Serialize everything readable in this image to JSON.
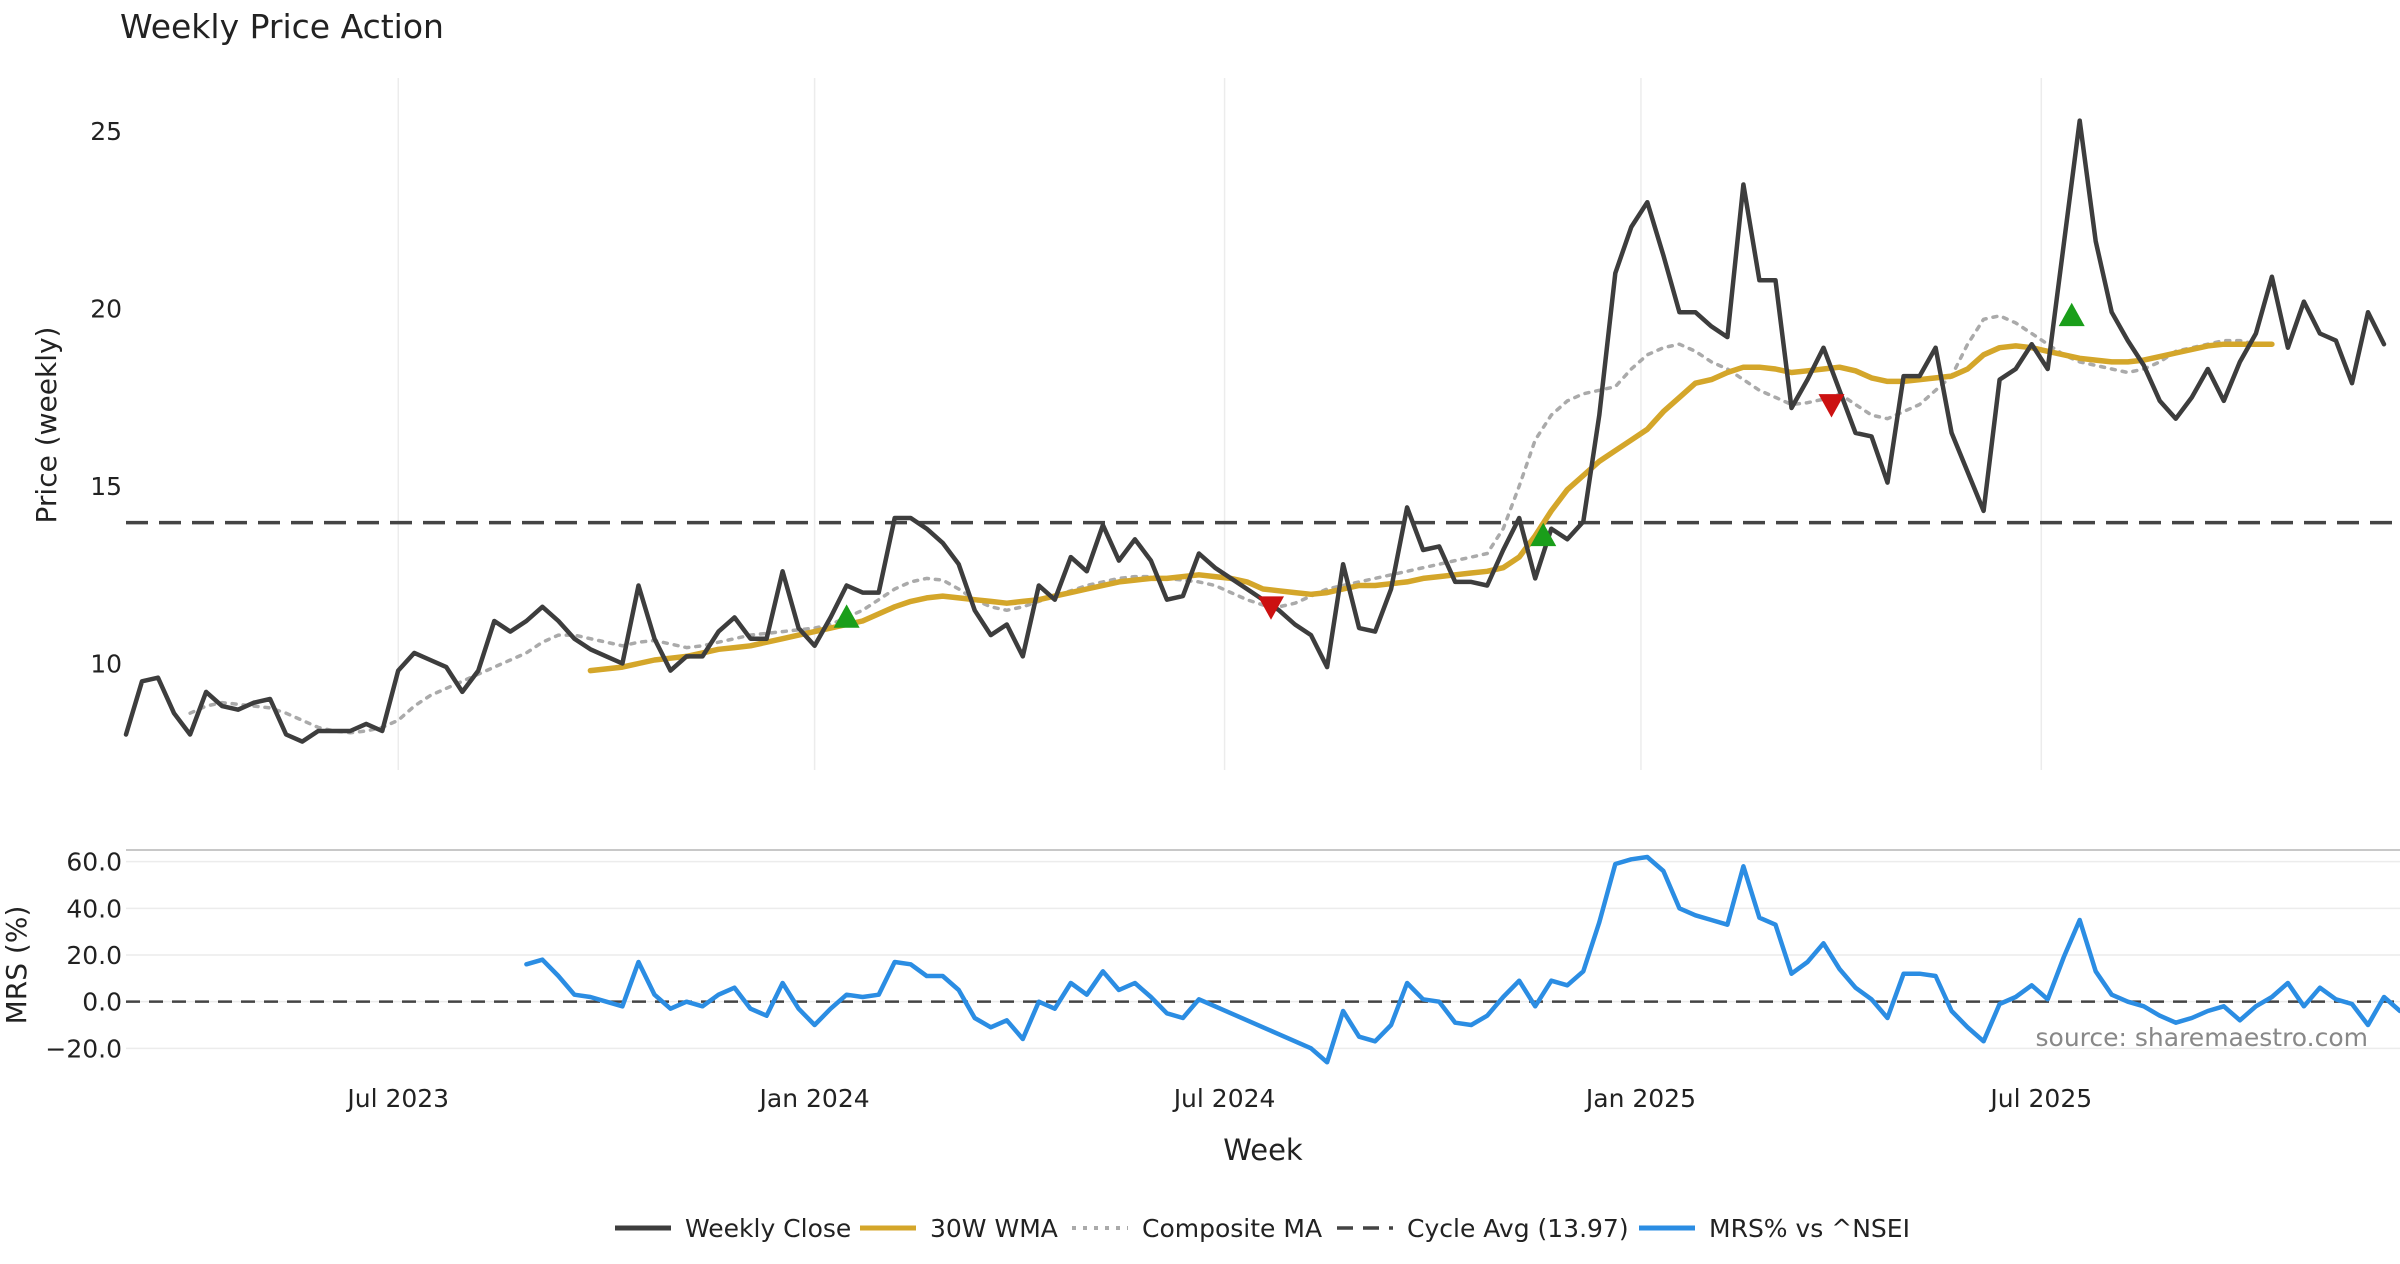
{
  "title": "Weekly Price Action",
  "source_label": "source: sharemaestro.com",
  "colors": {
    "close": "#3d3d3d",
    "wma": "#d4a62a",
    "composite": "#aaaaaa",
    "cycle": "#444444",
    "mrs": "#2b8de3",
    "buy": "#1a9e1a",
    "sell": "#cc1111",
    "grid": "#ececec",
    "text": "#222222",
    "source": "#888888"
  },
  "chart_data": [
    {
      "type": "line",
      "panel": "price",
      "ylabel": "Price (weekly)",
      "xlabel": "Week",
      "x_unit": "weeks since Mar 6 2023",
      "xlim": [
        0,
        142
      ],
      "ylim": [
        7.0,
        26.5
      ],
      "yticks": [
        10,
        15,
        20,
        25
      ],
      "xticks": [
        {
          "label": "Jul 2023",
          "week": 17
        },
        {
          "label": "Jan 2024",
          "week": 43
        },
        {
          "label": "Jul 2024",
          "week": 68.6
        },
        {
          "label": "Jan 2025",
          "week": 94.6
        },
        {
          "label": "Jul 2025",
          "week": 119.6
        }
      ],
      "cycle_average": 13.97,
      "series": [
        {
          "name": "Weekly Close",
          "start_week": 0,
          "values": [
            8.0,
            9.5,
            9.6,
            8.6,
            8.0,
            9.2,
            8.8,
            8.7,
            8.9,
            9.0,
            8.0,
            7.8,
            8.1,
            8.1,
            8.1,
            8.3,
            8.1,
            9.8,
            10.3,
            10.1,
            9.9,
            9.2,
            9.8,
            11.2,
            10.9,
            11.2,
            11.6,
            11.2,
            10.7,
            10.4,
            10.2,
            10.0,
            12.2,
            10.7,
            9.8,
            10.2,
            10.2,
            10.9,
            11.3,
            10.7,
            10.7,
            12.6,
            11.0,
            10.5,
            11.3,
            12.2,
            12.0,
            12.0,
            14.1,
            14.1,
            13.8,
            13.4,
            12.8,
            11.5,
            10.8,
            11.1,
            10.2,
            12.2,
            11.8,
            13.0,
            12.6,
            13.9,
            12.9,
            13.5,
            12.9,
            11.8,
            11.9,
            13.1,
            12.7,
            12.4,
            12.1,
            11.8,
            11.5,
            11.1,
            10.8,
            9.9,
            12.8,
            11.0,
            10.9,
            12.1,
            14.4,
            13.2,
            13.3,
            12.3,
            12.3,
            12.2,
            13.2,
            14.1,
            12.4,
            13.8,
            13.5,
            14.0,
            17.0,
            21.0,
            22.3,
            23.0,
            21.5,
            19.9,
            19.9,
            19.5,
            19.2,
            23.5,
            20.8,
            20.8,
            17.2,
            18.0,
            18.9,
            17.7,
            16.5,
            16.4,
            15.1,
            18.1,
            18.1,
            18.9,
            16.5,
            15.4,
            14.3,
            18.0,
            18.3,
            19.0,
            18.3,
            21.8,
            25.3,
            21.9,
            19.9,
            19.1,
            18.4,
            17.4,
            16.9,
            17.5,
            18.3,
            17.4,
            18.5,
            19.3,
            20.9,
            18.9,
            20.2,
            19.3,
            19.1,
            17.9,
            19.9,
            19.0
          ]
        },
        {
          "name": "30W WMA",
          "start_week": 29,
          "values": [
            9.8,
            9.85,
            9.9,
            10.0,
            10.1,
            10.15,
            10.2,
            10.3,
            10.4,
            10.45,
            10.5,
            10.6,
            10.7,
            10.8,
            10.9,
            11.0,
            11.1,
            11.2,
            11.4,
            11.6,
            11.75,
            11.85,
            11.9,
            11.85,
            11.8,
            11.75,
            11.7,
            11.75,
            11.8,
            11.9,
            12.0,
            12.1,
            12.2,
            12.3,
            12.35,
            12.4,
            12.4,
            12.45,
            12.5,
            12.45,
            12.4,
            12.3,
            12.1,
            12.05,
            12.0,
            11.95,
            12.0,
            12.1,
            12.2,
            12.2,
            12.25,
            12.3,
            12.4,
            12.45,
            12.5,
            12.55,
            12.6,
            12.7,
            13.0,
            13.6,
            14.3,
            14.9,
            15.3,
            15.7,
            16.0,
            16.3,
            16.6,
            17.1,
            17.5,
            17.9,
            18.0,
            18.2,
            18.35,
            18.35,
            18.3,
            18.2,
            18.25,
            18.3,
            18.35,
            18.25,
            18.05,
            17.95,
            17.95,
            18.0,
            18.05,
            18.1,
            18.3,
            18.7,
            18.9,
            18.95,
            18.9,
            18.8,
            18.7,
            18.6,
            18.55,
            18.5,
            18.5,
            18.55,
            18.65,
            18.75,
            18.85,
            18.95,
            19.0,
            19.0,
            19.0,
            19.0
          ]
        },
        {
          "name": "Composite MA",
          "start_week": 4,
          "values": [
            8.6,
            8.8,
            8.9,
            8.85,
            8.8,
            8.75,
            8.6,
            8.4,
            8.2,
            8.1,
            8.05,
            8.1,
            8.2,
            8.4,
            8.8,
            9.1,
            9.3,
            9.5,
            9.7,
            9.9,
            10.1,
            10.3,
            10.6,
            10.8,
            10.8,
            10.7,
            10.6,
            10.5,
            10.6,
            10.65,
            10.55,
            10.45,
            10.5,
            10.6,
            10.7,
            10.8,
            10.85,
            10.9,
            10.95,
            11.0,
            11.1,
            11.3,
            11.5,
            11.8,
            12.1,
            12.3,
            12.4,
            12.35,
            12.1,
            11.8,
            11.6,
            11.5,
            11.6,
            11.75,
            11.9,
            12.05,
            12.2,
            12.3,
            12.4,
            12.45,
            12.45,
            12.4,
            12.35,
            12.3,
            12.2,
            12.0,
            11.8,
            11.65,
            11.6,
            11.7,
            11.9,
            12.1,
            12.2,
            12.3,
            12.4,
            12.5,
            12.6,
            12.7,
            12.8,
            12.9,
            13.0,
            13.1,
            13.8,
            15.0,
            16.3,
            17.0,
            17.4,
            17.6,
            17.7,
            17.8,
            18.3,
            18.7,
            18.9,
            19.0,
            18.8,
            18.5,
            18.3,
            18.0,
            17.7,
            17.5,
            17.3,
            17.35,
            17.45,
            17.6,
            17.3,
            17.0,
            16.9,
            17.1,
            17.3,
            17.7,
            18.1,
            19.0,
            19.7,
            19.8,
            19.6,
            19.3,
            19.0,
            18.7,
            18.5,
            18.4,
            18.3,
            18.2,
            18.3,
            18.5,
            18.8,
            18.9,
            19.0,
            19.1,
            19.1,
            19.0
          ]
        }
      ],
      "signals": [
        {
          "type": "buy",
          "week": 45,
          "value": 11.3
        },
        {
          "type": "sell",
          "week": 71.5,
          "value": 11.6
        },
        {
          "type": "buy",
          "week": 88.5,
          "value": 13.6
        },
        {
          "type": "sell",
          "week": 106.5,
          "value": 17.3
        },
        {
          "type": "buy",
          "week": 121.5,
          "value": 19.8
        }
      ]
    },
    {
      "type": "line",
      "panel": "mrs",
      "ylabel": "MRS (%)",
      "ylim": [
        -25,
        65
      ],
      "yticks": [
        -20.0,
        0.0,
        20.0,
        40.0,
        60.0
      ],
      "ytick_labels": [
        "−20.0",
        "0.0",
        "20.0",
        "40.0",
        "60.0"
      ],
      "zero_line": 0,
      "series": [
        {
          "name": "MRS% vs ^NSEI",
          "start_week": 25,
          "values": [
            16,
            18,
            11,
            3,
            2,
            0,
            -2,
            17,
            3,
            -3,
            0,
            -2,
            3,
            6,
            -3,
            -6,
            8,
            -3,
            -10,
            -3,
            3,
            2,
            3,
            17,
            16,
            11,
            11,
            5,
            -7,
            -11,
            -8,
            -16,
            0,
            -3,
            8,
            3,
            13,
            5,
            8,
            2,
            -5,
            -7,
            1,
            -2,
            -5,
            -8,
            -11,
            -14,
            -17,
            -20,
            -26,
            -4,
            -15,
            -17,
            -10,
            8,
            1,
            0,
            -9,
            -10,
            -6,
            2,
            9,
            -2,
            9,
            7,
            13,
            34,
            59,
            61,
            62,
            56,
            40,
            37,
            35,
            33,
            58,
            36,
            33,
            12,
            17,
            25,
            14,
            6,
            1,
            -7,
            12,
            12,
            11,
            -4,
            -11,
            -17,
            -1,
            2,
            7,
            1,
            19,
            35,
            13,
            3,
            0,
            -2,
            -6,
            -9,
            -7,
            -4,
            -2,
            -8,
            -2,
            2,
            8,
            -2,
            6,
            1,
            -1,
            -10,
            2,
            -4
          ]
        }
      ]
    }
  ],
  "legend": [
    {
      "label": "Weekly Close",
      "style": "solid",
      "color_key": "close"
    },
    {
      "label": "30W WMA",
      "style": "solid-thick",
      "color_key": "wma"
    },
    {
      "label": "Composite MA",
      "style": "dotted",
      "color_key": "composite"
    },
    {
      "label": "Cycle Avg (13.97)",
      "style": "dashed",
      "color_key": "cycle"
    },
    {
      "label": "MRS% vs ^NSEI",
      "style": "solid-thick",
      "color_key": "mrs"
    }
  ]
}
